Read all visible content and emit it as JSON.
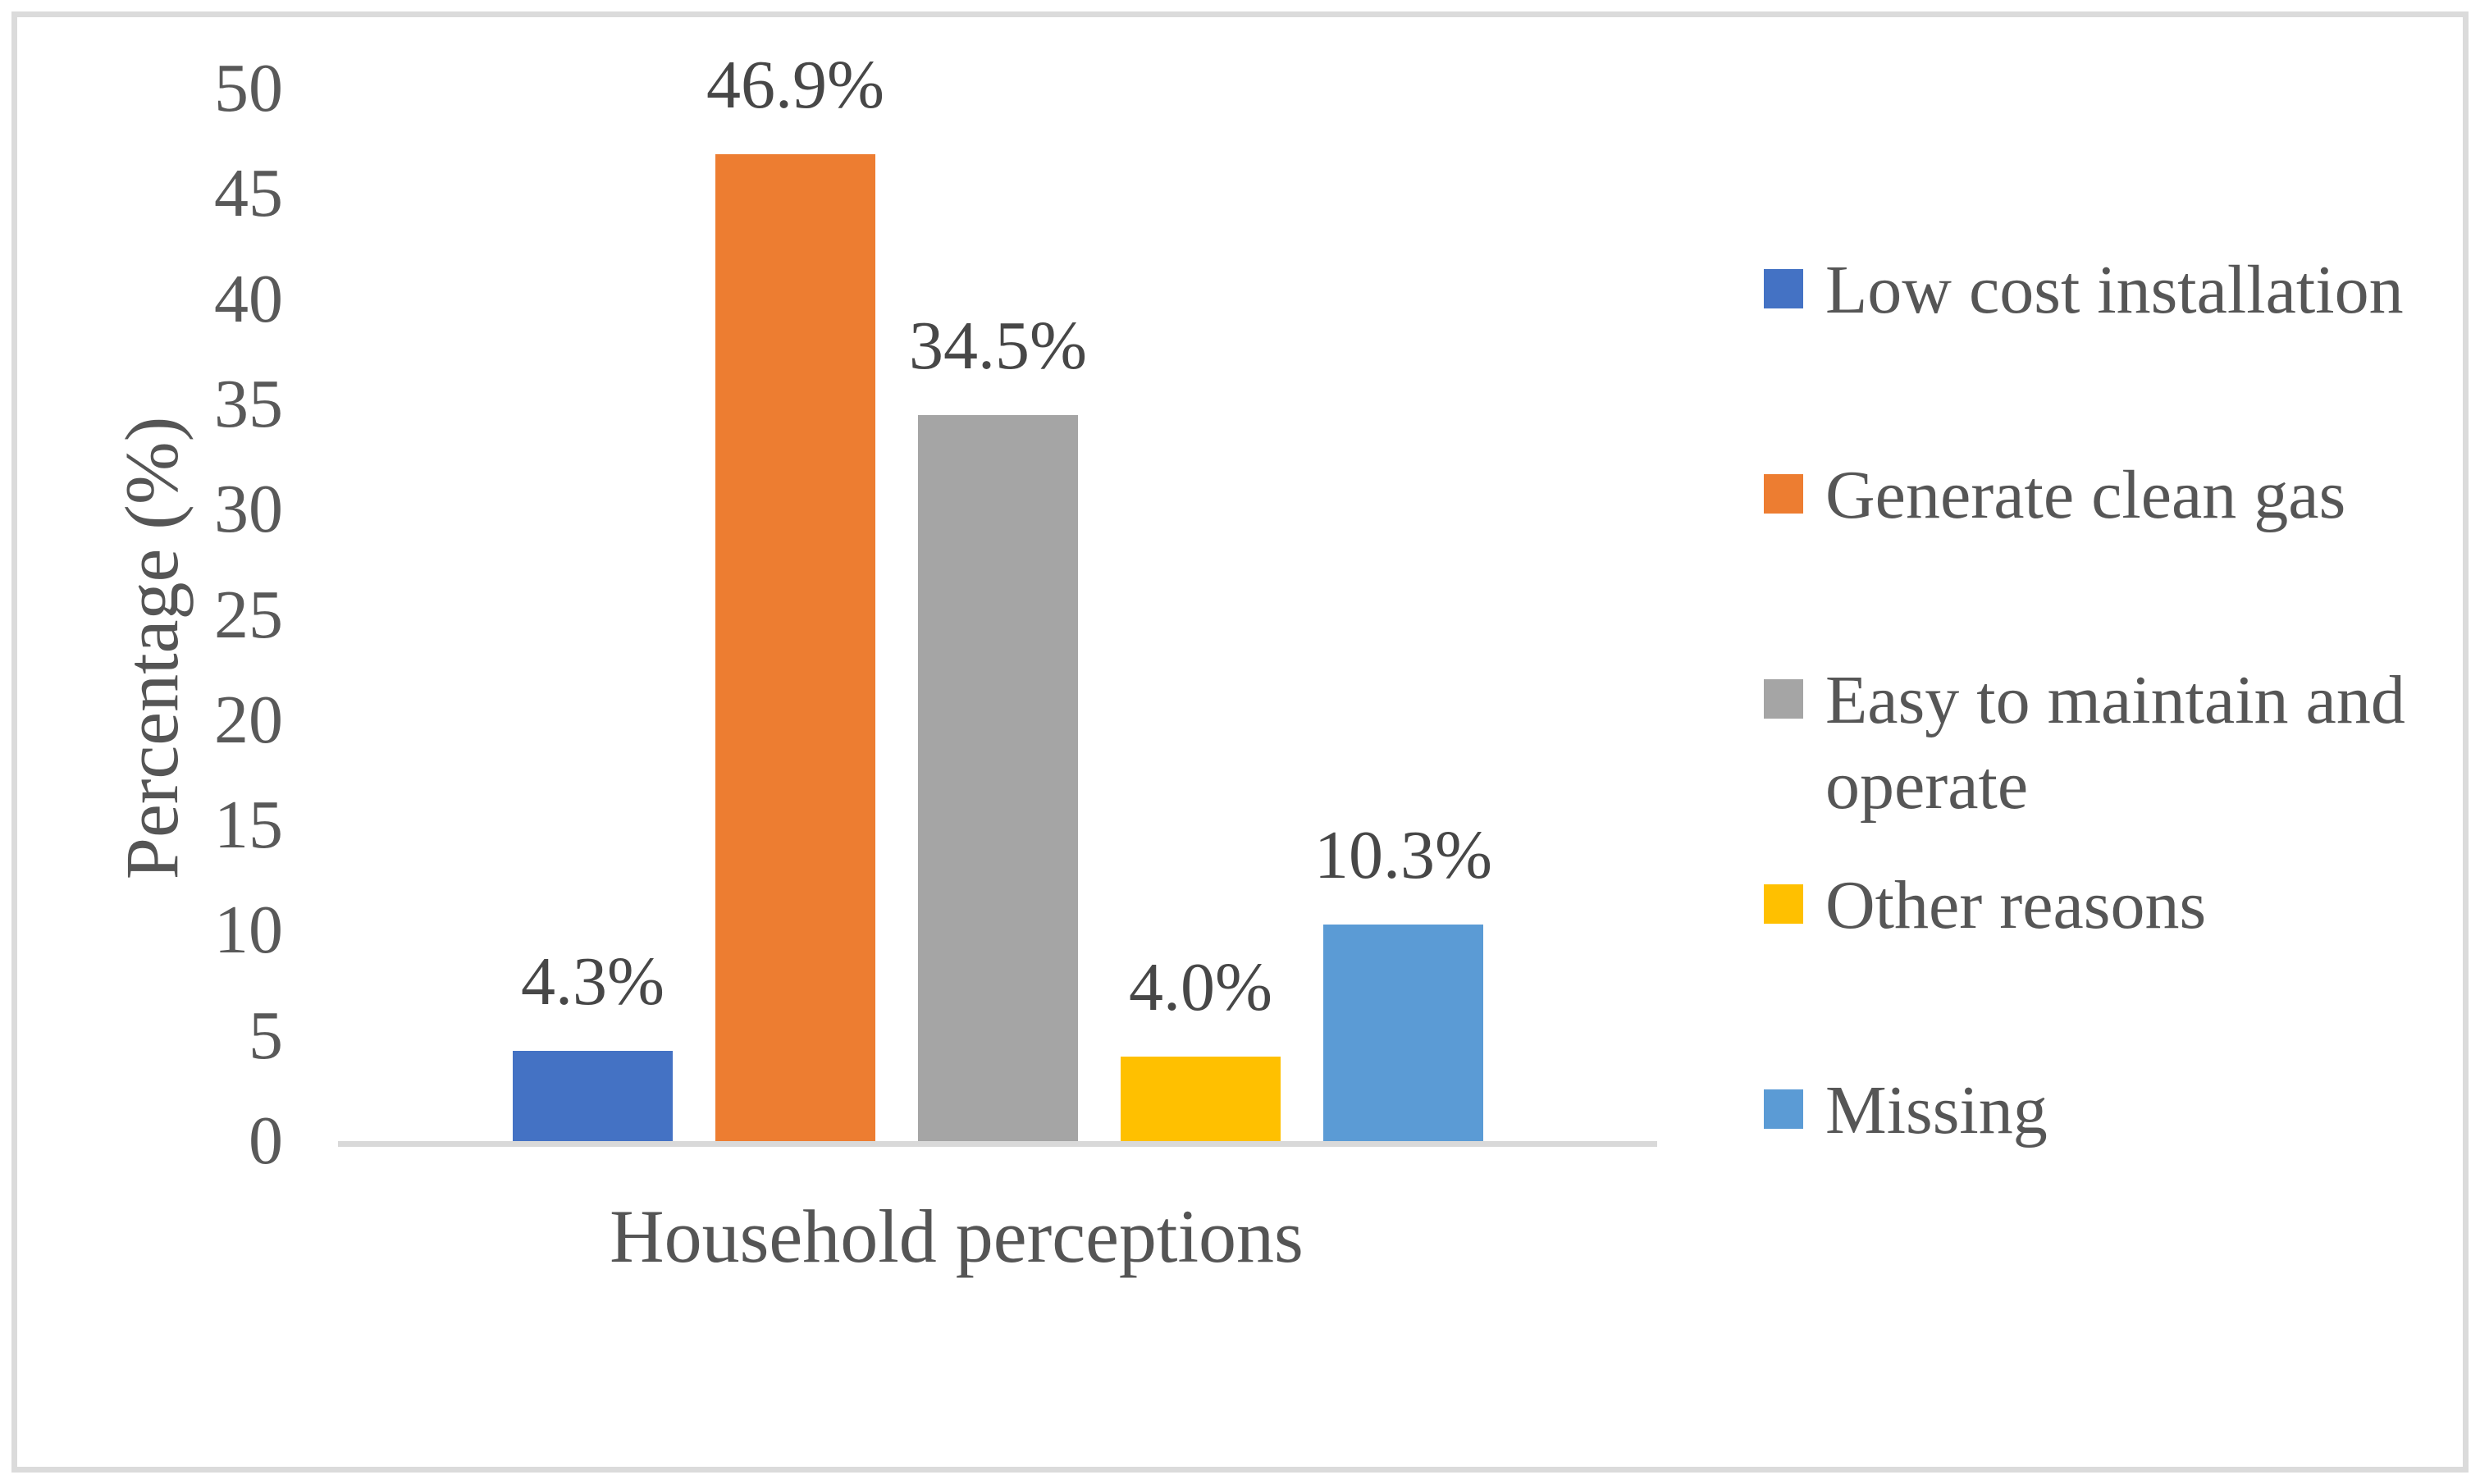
{
  "chart_data": {
    "type": "bar",
    "title": "",
    "categories": [
      "Low cost installation",
      "Generate clean gas",
      "Easy to maintain and operate",
      "Other reasons",
      "Missing"
    ],
    "values": [
      4.3,
      46.9,
      34.5,
      4.0,
      10.3
    ],
    "data_labels": [
      "4.3%",
      "46.9%",
      "34.5%",
      "4.0%",
      "10.3%"
    ],
    "colors": [
      "#4472C4",
      "#ED7D31",
      "#A5A5A5",
      "#FFC000",
      "#5B9BD5"
    ],
    "xlabel": "Household perceptions",
    "ylabel": "Percentage (%)",
    "ylim": [
      0,
      50
    ],
    "yticks": [
      0,
      5,
      10,
      15,
      20,
      25,
      30,
      35,
      40,
      45,
      50
    ],
    "grid": false,
    "legend_position": "right",
    "legend": [
      "Low cost installation",
      "Generate clean gas",
      "Easy to maintain and operate",
      "Other reasons",
      "Missing"
    ]
  },
  "frame": {
    "border_color": "#dbdbdb",
    "background": "#ffffff",
    "axis_line_color": "#d9d9d9"
  }
}
